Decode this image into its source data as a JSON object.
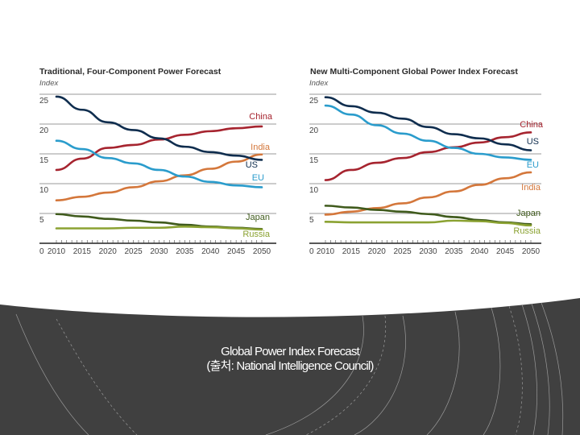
{
  "slide": {
    "caption_line1": "Global Power Index Forecast",
    "caption_line2": "(출처: National Intelligence Council)",
    "background_dark": "#404040"
  },
  "chart_data": [
    {
      "type": "line",
      "title": "Traditional, Four-Component Power Forecast",
      "ylabel": "Index",
      "xlabel": "",
      "ylim": [
        0,
        25
      ],
      "xlim": [
        2010,
        2050
      ],
      "yticks": [
        "0",
        "5",
        "10",
        "15",
        "20",
        "25"
      ],
      "xticks": [
        "2010",
        "2015",
        "2020",
        "2025",
        "2030",
        "2035",
        "2040",
        "2045",
        "2050"
      ],
      "grid": true,
      "x": [
        2010,
        2015,
        2020,
        2025,
        2030,
        2035,
        2040,
        2045,
        2050
      ],
      "series": [
        {
          "name": "China",
          "color": "#a6242f",
          "values": [
            12.3,
            14.2,
            16.0,
            16.5,
            17.4,
            18.2,
            18.8,
            19.3,
            19.6
          ]
        },
        {
          "name": "India",
          "color": "#d4773b",
          "values": [
            7.2,
            7.8,
            8.5,
            9.4,
            10.4,
            11.4,
            12.5,
            13.7,
            14.9
          ]
        },
        {
          "name": "US",
          "color": "#0f2d4e",
          "values": [
            24.6,
            22.4,
            20.3,
            19.0,
            17.6,
            16.2,
            15.3,
            14.7,
            14.0
          ]
        },
        {
          "name": "EU",
          "color": "#2a9ccc",
          "values": [
            17.2,
            15.8,
            14.3,
            13.4,
            12.3,
            11.2,
            10.3,
            9.7,
            9.4
          ]
        },
        {
          "name": "Japan",
          "color": "#3f5a1c",
          "values": [
            4.9,
            4.5,
            4.1,
            3.8,
            3.5,
            3.1,
            2.8,
            2.6,
            2.4
          ]
        },
        {
          "name": "Russia",
          "color": "#8ba232",
          "values": [
            2.5,
            2.5,
            2.5,
            2.6,
            2.6,
            2.8,
            2.7,
            2.5,
            2.3
          ]
        }
      ],
      "legend": "inline-right"
    },
    {
      "type": "line",
      "title": "New Multi-Component Global Power Index Forecast",
      "ylabel": "Index",
      "xlabel": "",
      "ylim": [
        0,
        25
      ],
      "xlim": [
        2010,
        2050
      ],
      "yticks": [
        "0",
        "5",
        "10",
        "15",
        "20",
        "25"
      ],
      "xticks": [
        "2010",
        "2015",
        "2020",
        "2025",
        "2030",
        "2035",
        "2040",
        "2045",
        "2050"
      ],
      "grid": true,
      "x": [
        2010,
        2015,
        2020,
        2025,
        2030,
        2035,
        2040,
        2045,
        2050
      ],
      "series": [
        {
          "name": "China",
          "color": "#a6242f",
          "values": [
            10.6,
            12.3,
            13.5,
            14.3,
            15.3,
            16.1,
            16.9,
            17.8,
            18.6
          ]
        },
        {
          "name": "US",
          "color": "#0f2d4e",
          "values": [
            24.5,
            23.0,
            21.9,
            20.9,
            19.5,
            18.3,
            17.6,
            16.6,
            15.6
          ]
        },
        {
          "name": "EU",
          "color": "#2a9ccc",
          "values": [
            23.1,
            21.6,
            19.8,
            18.4,
            17.2,
            16.0,
            15.0,
            14.4,
            14.0
          ]
        },
        {
          "name": "India",
          "color": "#d4773b",
          "values": [
            4.8,
            5.3,
            5.9,
            6.7,
            7.7,
            8.7,
            9.8,
            10.9,
            11.9
          ]
        },
        {
          "name": "Japan",
          "color": "#3f5a1c",
          "values": [
            6.3,
            6.0,
            5.6,
            5.3,
            4.9,
            4.4,
            3.9,
            3.5,
            3.2
          ]
        },
        {
          "name": "Russia",
          "color": "#8ba232",
          "values": [
            3.6,
            3.5,
            3.5,
            3.5,
            3.5,
            3.8,
            3.7,
            3.4,
            3.0
          ]
        }
      ],
      "legend": "inline-right"
    }
  ]
}
